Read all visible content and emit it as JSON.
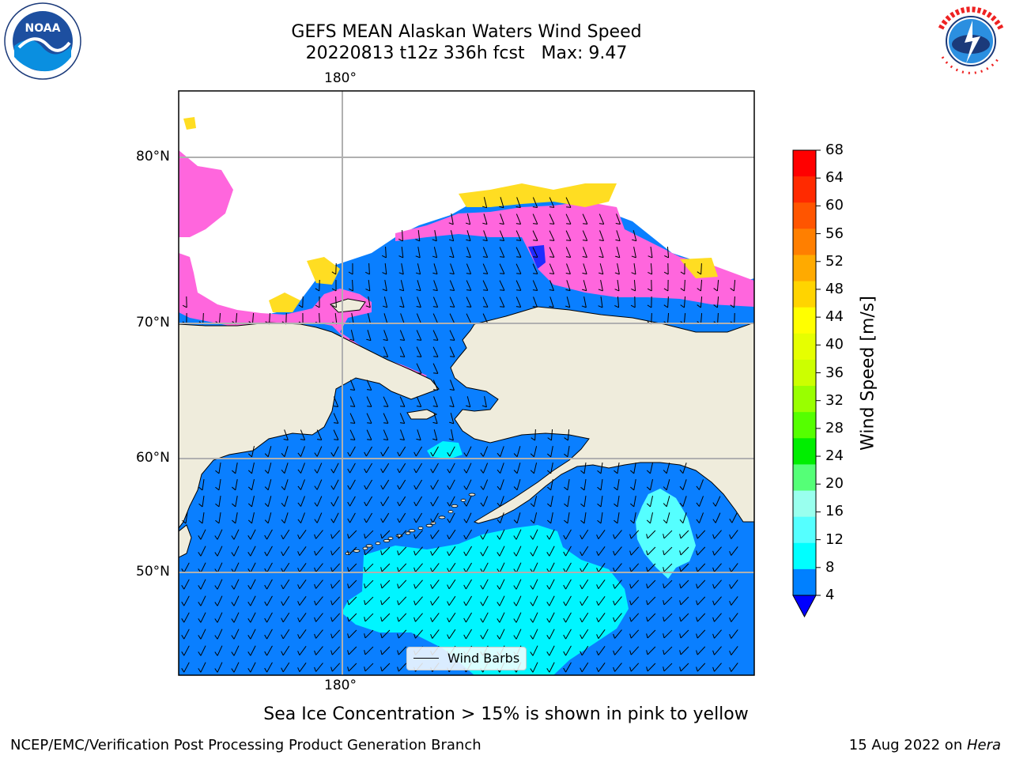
{
  "title_line1": "GEFS MEAN Alaskan Waters Wind Speed",
  "title_line2": "20220813 t12z 336h fcst   Max: 9.47",
  "logos": {
    "left": {
      "text": "NOAA",
      "ring_text": "NATIONAL OCEANIC AND ATMOSPHERIC ADMINISTRATION · U.S. DEPARTMENT OF COMMERCE"
    },
    "right": {
      "ring_text": "NATIONAL WEATHER SERVICE"
    }
  },
  "axes": {
    "lon_top": "180°",
    "lon_bottom": "180°",
    "lat_labels": [
      "80°N",
      "70°N",
      "60°N",
      "50°N"
    ]
  },
  "legend": {
    "label": "Wind Barbs"
  },
  "colorbar": {
    "label": "Wind Speed [m/s]",
    "ticks": [
      "68",
      "64",
      "60",
      "56",
      "52",
      "48",
      "44",
      "40",
      "36",
      "32",
      "28",
      "24",
      "20",
      "16",
      "12",
      "8",
      "4"
    ],
    "colors": [
      "#ff0000",
      "#ff2a00",
      "#ff5500",
      "#ff7f00",
      "#ffaa00",
      "#ffd400",
      "#ffff00",
      "#e6ff00",
      "#ccff00",
      "#99ff00",
      "#55ff00",
      "#00ee00",
      "#55ff77",
      "#99ffee",
      "#55ffff",
      "#00ffff",
      "#0080ff"
    ],
    "extend_color": "#0000ff"
  },
  "colors": {
    "ocean": "#0a7fff",
    "land": "#efecdc",
    "cyan": "#00f5ff",
    "light_cyan": "#55ffff",
    "ice_pink": "#ff66dd",
    "ice_yellow": "#ffdd22",
    "ice_orange": "#ffb84d"
  },
  "caption": "Sea Ice Concentration > 15% is shown in pink to yellow",
  "footer_left": "NCEP/EMC/Verification Post Processing Product Generation Branch",
  "footer_right_date": "15 Aug 2022 on ",
  "footer_right_machine": "Hera"
}
